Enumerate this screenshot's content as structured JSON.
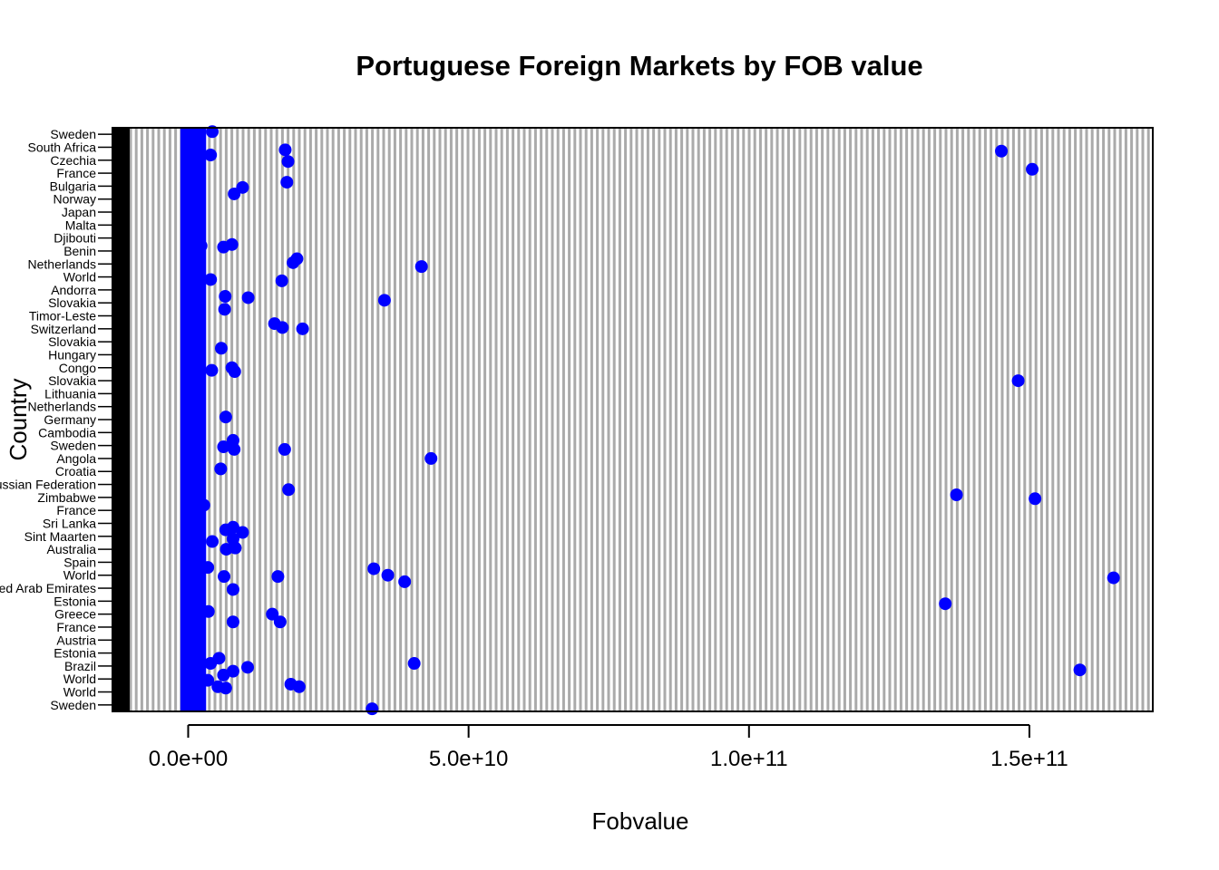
{
  "chart_data": {
    "type": "scatter",
    "title": "Portuguese Foreign Markets by FOB value",
    "xlabel": "Fobvalue",
    "ylabel": "Country",
    "xlim": [
      -13500000000,
      172000000000
    ],
    "x_ticks": [
      0,
      50000000000,
      100000000000,
      150000000000
    ],
    "x_tick_labels": [
      "0.0e+00",
      "5.0e+10",
      "1.0e+11",
      "1.5e+11"
    ],
    "y_tick_labels": [
      "Sweden",
      "World",
      "World",
      "Brazil",
      "Estonia",
      "Austria",
      "France",
      "Greece",
      "Estonia",
      "United Arab Emirates",
      "World",
      "Spain",
      "Australia",
      "Sint Maarten",
      "Sri Lanka",
      "France",
      "Zimbabwe",
      "Russian Federation",
      "Croatia",
      "Angola",
      "Sweden",
      "Cambodia",
      "Germany",
      "Netherlands",
      "Lithuania",
      "Slovakia",
      "Congo",
      "Hungary",
      "Slovakia",
      "Switzerland",
      "Timor-Leste",
      "Slovakia",
      "Andorra",
      "World",
      "Netherlands",
      "Benin",
      "Djibouti",
      "Malta",
      "Japan",
      "Norway",
      "Bulgaria",
      "France",
      "Czechia",
      "South Africa",
      "Sweden"
    ],
    "grid": true,
    "series": [
      {
        "color": "#0000ff",
        "points": [
          {
            "x": 32800000000,
            "y": 0.2
          },
          {
            "x": 1800000000,
            "y": 1.6
          },
          {
            "x": 18300000000,
            "y": 2.1
          },
          {
            "x": 19800000000,
            "y": 1.9
          },
          {
            "x": 5300000000,
            "y": 1.9
          },
          {
            "x": 6700000000,
            "y": 1.8
          },
          {
            "x": 3500000000,
            "y": 2.4
          },
          {
            "x": 6300000000,
            "y": 2.8
          },
          {
            "x": 8000000000,
            "y": 3.1
          },
          {
            "x": 10600000000,
            "y": 3.4
          },
          {
            "x": 159000000000,
            "y": 3.2
          },
          {
            "x": 4000000000,
            "y": 3.7
          },
          {
            "x": 40300000000,
            "y": 3.7
          },
          {
            "x": 5500000000,
            "y": 4.1
          },
          {
            "x": 15000000000,
            "y": 7.5
          },
          {
            "x": 16400000000,
            "y": 6.9
          },
          {
            "x": 8000000000,
            "y": 6.9
          },
          {
            "x": 3600000000,
            "y": 7.7
          },
          {
            "x": 135000000000,
            "y": 8.3
          },
          {
            "x": 8000000000,
            "y": 9.4
          },
          {
            "x": 38600000000,
            "y": 10.0
          },
          {
            "x": 16000000000,
            "y": 10.4
          },
          {
            "x": 6400000000,
            "y": 10.4
          },
          {
            "x": 33100000000,
            "y": 11.0
          },
          {
            "x": 35600000000,
            "y": 10.5
          },
          {
            "x": 165000000000,
            "y": 10.3
          },
          {
            "x": 3500000000,
            "y": 11.1
          },
          {
            "x": 6800000000,
            "y": 12.5
          },
          {
            "x": 8400000000,
            "y": 12.6
          },
          {
            "x": 4300000000,
            "y": 13.1
          },
          {
            "x": 8000000000,
            "y": 13.3
          },
          {
            "x": 6700000000,
            "y": 14.0
          },
          {
            "x": 8000000000,
            "y": 14.2
          },
          {
            "x": 9700000000,
            "y": 13.8
          },
          {
            "x": 2800000000,
            "y": 15.9
          },
          {
            "x": 137000000000,
            "y": 16.7
          },
          {
            "x": 151000000000,
            "y": 16.4
          },
          {
            "x": 17900000000,
            "y": 17.1
          },
          {
            "x": 5800000000,
            "y": 18.7
          },
          {
            "x": 43300000000,
            "y": 19.5
          },
          {
            "x": 17200000000,
            "y": 20.2
          },
          {
            "x": 6300000000,
            "y": 20.4
          },
          {
            "x": 8000000000,
            "y": 20.9
          },
          {
            "x": 7700000000,
            "y": 20.5
          },
          {
            "x": 8200000000,
            "y": 20.2
          },
          {
            "x": 6700000000,
            "y": 22.7
          },
          {
            "x": 148000000000,
            "y": 25.5
          },
          {
            "x": 4200000000,
            "y": 26.3
          },
          {
            "x": 7800000000,
            "y": 26.5
          },
          {
            "x": 8300000000,
            "y": 26.2
          },
          {
            "x": 5900000000,
            "y": 28.0
          },
          {
            "x": 15400000000,
            "y": 29.9
          },
          {
            "x": 16800000000,
            "y": 29.6
          },
          {
            "x": 20400000000,
            "y": 29.5
          },
          {
            "x": 6500000000,
            "y": 31.0
          },
          {
            "x": 35000000000,
            "y": 31.7
          },
          {
            "x": 10700000000,
            "y": 31.9
          },
          {
            "x": 6600000000,
            "y": 32.0
          },
          {
            "x": 4000000000,
            "y": 33.3
          },
          {
            "x": 16700000000,
            "y": 33.2
          },
          {
            "x": 41600000000,
            "y": 34.3
          },
          {
            "x": 18700000000,
            "y": 34.6
          },
          {
            "x": 19400000000,
            "y": 34.9
          },
          {
            "x": 2300000000,
            "y": 35.9
          },
          {
            "x": 6300000000,
            "y": 35.8
          },
          {
            "x": 7800000000,
            "y": 36.0
          },
          {
            "x": 8200000000,
            "y": 39.9
          },
          {
            "x": 9700000000,
            "y": 40.4
          },
          {
            "x": 17600000000,
            "y": 40.8
          },
          {
            "x": 150500000000,
            "y": 41.8
          },
          {
            "x": 17800000000,
            "y": 42.4
          },
          {
            "x": 4000000000,
            "y": 42.9
          },
          {
            "x": 145000000000,
            "y": 43.2
          },
          {
            "x": 17300000000,
            "y": 43.3
          },
          {
            "x": 4300000000,
            "y": 44.7
          }
        ]
      }
    ]
  }
}
